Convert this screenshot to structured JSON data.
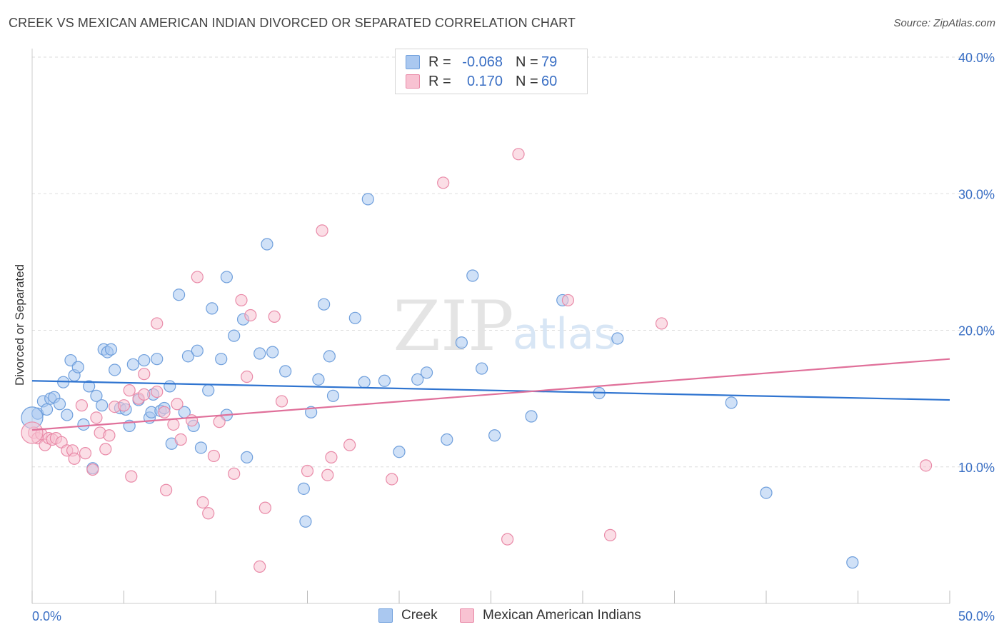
{
  "title": "CREEK VS MEXICAN AMERICAN INDIAN DIVORCED OR SEPARATED CORRELATION CHART",
  "source": "Source: ZipAtlas.com",
  "colors": {
    "blue_fill": "#aac8f0",
    "blue_stroke": "#6f9fdc",
    "blue_line": "#2f74d0",
    "pink_fill": "#f8c2d2",
    "pink_stroke": "#e98aa8",
    "pink_line": "#e0709a",
    "tick_text": "#3a6fc4",
    "grid": "#dddddd",
    "watermark": "#e4e4e4"
  },
  "legend_stats": [
    {
      "series": "Creek",
      "r_label": "R =",
      "r_value": "-0.068",
      "n_label": "N =",
      "n_value": "79",
      "color": "#aac8f0",
      "border": "#6f9fdc"
    },
    {
      "series": "Mexican American Indians",
      "r_label": "R =",
      "r_value": "0.170",
      "n_label": "N =",
      "n_value": "60",
      "color": "#f8c2d2",
      "border": "#e98aa8"
    }
  ],
  "watermark": {
    "zip": "ZIP",
    "atlas": "atlas"
  },
  "chart_data": {
    "type": "scatter",
    "title": "CREEK VS MEXICAN AMERICAN INDIAN DIVORCED OR SEPARATED CORRELATION CHART",
    "xlabel": "",
    "ylabel": "Divorced or Separated",
    "xlim": [
      0,
      50
    ],
    "ylim": [
      0,
      40
    ],
    "x_tick_labels": [
      "0.0%",
      "50.0%"
    ],
    "y_ticks": [
      10,
      20,
      30,
      40
    ],
    "y_tick_labels": [
      "10.0%",
      "20.0%",
      "30.0%",
      "40.0%"
    ],
    "grid": true,
    "legend_position": "bottom",
    "series": [
      {
        "name": "Creek",
        "trend": [
          [
            0,
            16.3
          ],
          [
            50,
            14.9
          ]
        ],
        "points": [
          [
            0.3,
            13.9
          ],
          [
            0.6,
            14.8
          ],
          [
            0.8,
            14.2
          ],
          [
            1.0,
            15.0
          ],
          [
            1.2,
            15.1
          ],
          [
            1.5,
            14.6
          ],
          [
            1.7,
            16.2
          ],
          [
            1.9,
            13.8
          ],
          [
            2.1,
            17.8
          ],
          [
            2.3,
            16.7
          ],
          [
            2.5,
            17.3
          ],
          [
            2.8,
            13.1
          ],
          [
            3.1,
            15.9
          ],
          [
            3.3,
            9.9
          ],
          [
            3.5,
            15.2
          ],
          [
            3.8,
            14.5
          ],
          [
            3.9,
            18.6
          ],
          [
            4.1,
            18.4
          ],
          [
            4.3,
            18.6
          ],
          [
            4.5,
            17.1
          ],
          [
            4.8,
            14.3
          ],
          [
            5.1,
            14.2
          ],
          [
            5.3,
            13.0
          ],
          [
            5.5,
            17.5
          ],
          [
            5.8,
            14.9
          ],
          [
            6.1,
            17.8
          ],
          [
            6.4,
            13.6
          ],
          [
            6.5,
            14.0
          ],
          [
            6.6,
            15.3
          ],
          [
            6.8,
            17.9
          ],
          [
            7.0,
            14.1
          ],
          [
            7.2,
            14.3
          ],
          [
            7.5,
            15.9
          ],
          [
            7.6,
            11.7
          ],
          [
            8.0,
            22.6
          ],
          [
            8.3,
            14.0
          ],
          [
            8.5,
            18.1
          ],
          [
            8.8,
            13.0
          ],
          [
            9.0,
            18.5
          ],
          [
            9.2,
            11.4
          ],
          [
            9.6,
            15.6
          ],
          [
            9.8,
            21.6
          ],
          [
            10.3,
            17.9
          ],
          [
            10.6,
            13.8
          ],
          [
            10.6,
            23.9
          ],
          [
            11.0,
            19.6
          ],
          [
            11.5,
            20.8
          ],
          [
            11.7,
            10.7
          ],
          [
            12.4,
            18.3
          ],
          [
            12.8,
            26.3
          ],
          [
            13.1,
            18.4
          ],
          [
            13.8,
            17.0
          ],
          [
            14.8,
            8.4
          ],
          [
            14.9,
            6.0
          ],
          [
            15.2,
            14.0
          ],
          [
            15.6,
            16.4
          ],
          [
            15.9,
            21.9
          ],
          [
            16.2,
            18.1
          ],
          [
            16.4,
            15.2
          ],
          [
            17.6,
            20.9
          ],
          [
            18.1,
            16.2
          ],
          [
            18.3,
            29.6
          ],
          [
            19.2,
            16.3
          ],
          [
            20.0,
            11.1
          ],
          [
            21.0,
            16.4
          ],
          [
            21.5,
            16.9
          ],
          [
            22.6,
            12.0
          ],
          [
            23.4,
            19.1
          ],
          [
            24.0,
            24.0
          ],
          [
            24.5,
            17.2
          ],
          [
            25.2,
            12.3
          ],
          [
            27.2,
            13.7
          ],
          [
            28.9,
            22.2
          ],
          [
            30.9,
            15.4
          ],
          [
            31.9,
            19.4
          ],
          [
            38.1,
            14.7
          ],
          [
            40.0,
            8.1
          ],
          [
            44.7,
            3.0
          ],
          [
            0.0,
            13.6
          ]
        ]
      },
      {
        "name": "Mexican American Indians",
        "trend": [
          [
            0,
            12.7
          ],
          [
            50,
            17.9
          ]
        ],
        "points": [
          [
            0.1,
            12.5
          ],
          [
            0.3,
            12.1
          ],
          [
            0.5,
            12.4
          ],
          [
            0.7,
            11.6
          ],
          [
            0.9,
            12.1
          ],
          [
            1.1,
            12.0
          ],
          [
            1.3,
            12.1
          ],
          [
            1.6,
            11.8
          ],
          [
            1.9,
            11.2
          ],
          [
            2.2,
            11.2
          ],
          [
            2.3,
            10.6
          ],
          [
            2.7,
            14.5
          ],
          [
            2.9,
            11.0
          ],
          [
            3.3,
            9.8
          ],
          [
            3.5,
            13.6
          ],
          [
            3.7,
            12.5
          ],
          [
            4.0,
            11.3
          ],
          [
            4.2,
            12.3
          ],
          [
            4.5,
            14.4
          ],
          [
            5.0,
            14.5
          ],
          [
            5.3,
            15.6
          ],
          [
            5.4,
            9.3
          ],
          [
            5.8,
            15.0
          ],
          [
            6.1,
            15.3
          ],
          [
            6.1,
            16.8
          ],
          [
            6.8,
            15.5
          ],
          [
            6.8,
            20.5
          ],
          [
            7.2,
            14.0
          ],
          [
            7.3,
            8.3
          ],
          [
            7.7,
            13.1
          ],
          [
            7.9,
            14.6
          ],
          [
            8.1,
            12.0
          ],
          [
            8.7,
            13.4
          ],
          [
            9.0,
            23.9
          ],
          [
            9.3,
            7.4
          ],
          [
            9.6,
            6.6
          ],
          [
            9.9,
            10.8
          ],
          [
            10.2,
            13.3
          ],
          [
            11.0,
            9.5
          ],
          [
            11.4,
            22.2
          ],
          [
            11.7,
            16.6
          ],
          [
            11.9,
            21.1
          ],
          [
            12.4,
            2.7
          ],
          [
            12.7,
            7.0
          ],
          [
            13.2,
            21.0
          ],
          [
            13.6,
            14.8
          ],
          [
            15.0,
            9.7
          ],
          [
            15.8,
            27.3
          ],
          [
            16.1,
            9.4
          ],
          [
            16.3,
            10.7
          ],
          [
            17.3,
            11.6
          ],
          [
            19.6,
            9.1
          ],
          [
            22.4,
            30.8
          ],
          [
            25.9,
            4.7
          ],
          [
            26.5,
            32.9
          ],
          [
            29.2,
            22.2
          ],
          [
            31.5,
            5.0
          ],
          [
            34.3,
            20.5
          ],
          [
            48.7,
            10.1
          ],
          [
            0.0,
            12.5
          ]
        ]
      }
    ]
  }
}
